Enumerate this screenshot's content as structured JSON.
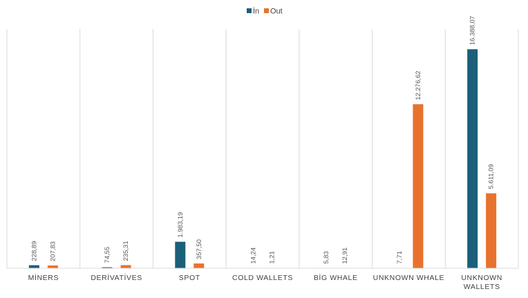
{
  "chart_data": {
    "type": "bar",
    "title": "",
    "xlabel": "",
    "ylabel": "",
    "ylim": [
      0,
      17900
    ],
    "grid": false,
    "legend_position": "top-center",
    "categories": [
      [
        "MİNERS"
      ],
      [
        "DERİVATİVES"
      ],
      [
        "SPOT"
      ],
      [
        "COLD WALLETS"
      ],
      [
        "BİG WHALE"
      ],
      [
        "UNKNOWN WHALE"
      ],
      [
        "UNKNOWN",
        "WALLETS"
      ]
    ],
    "series": [
      {
        "name": "İn",
        "color": "#1b5f7a",
        "values": [
          228.89,
          74.55,
          1983.19,
          14.24,
          5.83,
          7.71,
          16388.07
        ],
        "labels": [
          "228,89",
          "74,55",
          "1.983,19",
          "14,24",
          "5,83",
          "7,71",
          "16.388,07"
        ]
      },
      {
        "name": "Out",
        "color": "#e8722d",
        "values": [
          207.83,
          235.31,
          357.5,
          1.21,
          12.91,
          12276.62,
          5611.09
        ],
        "labels": [
          "207,83",
          "235,31",
          "357,50",
          "1,21",
          "12,91",
          "12.276,62",
          "5.611,09"
        ]
      }
    ]
  }
}
